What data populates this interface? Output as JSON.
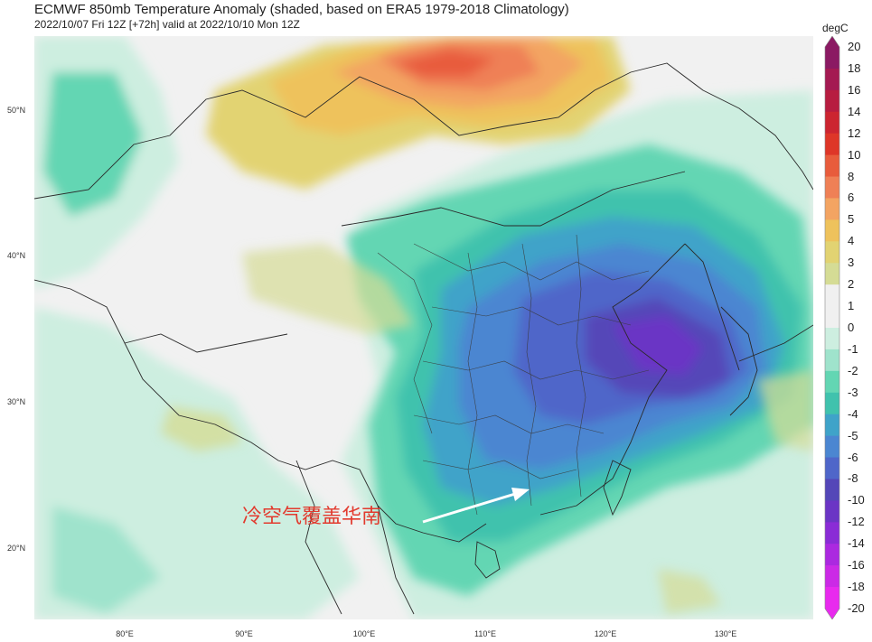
{
  "title": "ECMWF 850mb Temperature Anomaly (shaded, based on ERA5 1979-2018 Climatology)",
  "subtitle": "2022/10/07 Fri 12Z [+72h] valid at 2022/10/10 Mon 12Z",
  "colorbar": {
    "unit": "degC",
    "labels": [
      "20",
      "18",
      "16",
      "14",
      "12",
      "10",
      "8",
      "6",
      "5",
      "4",
      "3",
      "2",
      "1",
      "0",
      "-1",
      "-2",
      "-3",
      "-4",
      "-5",
      "-6",
      "-8",
      "-10",
      "-12",
      "-14",
      "-16",
      "-18",
      "-20"
    ],
    "colors": [
      "#8b1a63",
      "#a41a52",
      "#b71d40",
      "#cc2530",
      "#de3628",
      "#e85c3c",
      "#ef8056",
      "#f3a462",
      "#eec25c",
      "#e2d372",
      "#d5dc95",
      "#f0f0f0",
      "#f0f0f0",
      "#cdeee0",
      "#9fe3cc",
      "#63d6b3",
      "#40c2ad",
      "#3fa3c9",
      "#4b86d1",
      "#4f66c9",
      "#5447b8",
      "#6b35c5",
      "#8a2cd6",
      "#ab29e0",
      "#cb2ae6",
      "#e82aee"
    ]
  },
  "lat_labels": [
    "50°N",
    "40°N",
    "30°N",
    "20°N"
  ],
  "lon_labels": [
    "80°E",
    "90°E",
    "100°E",
    "110°E",
    "120°E",
    "130°E"
  ],
  "annotation": "冷空气覆盖华南"
}
